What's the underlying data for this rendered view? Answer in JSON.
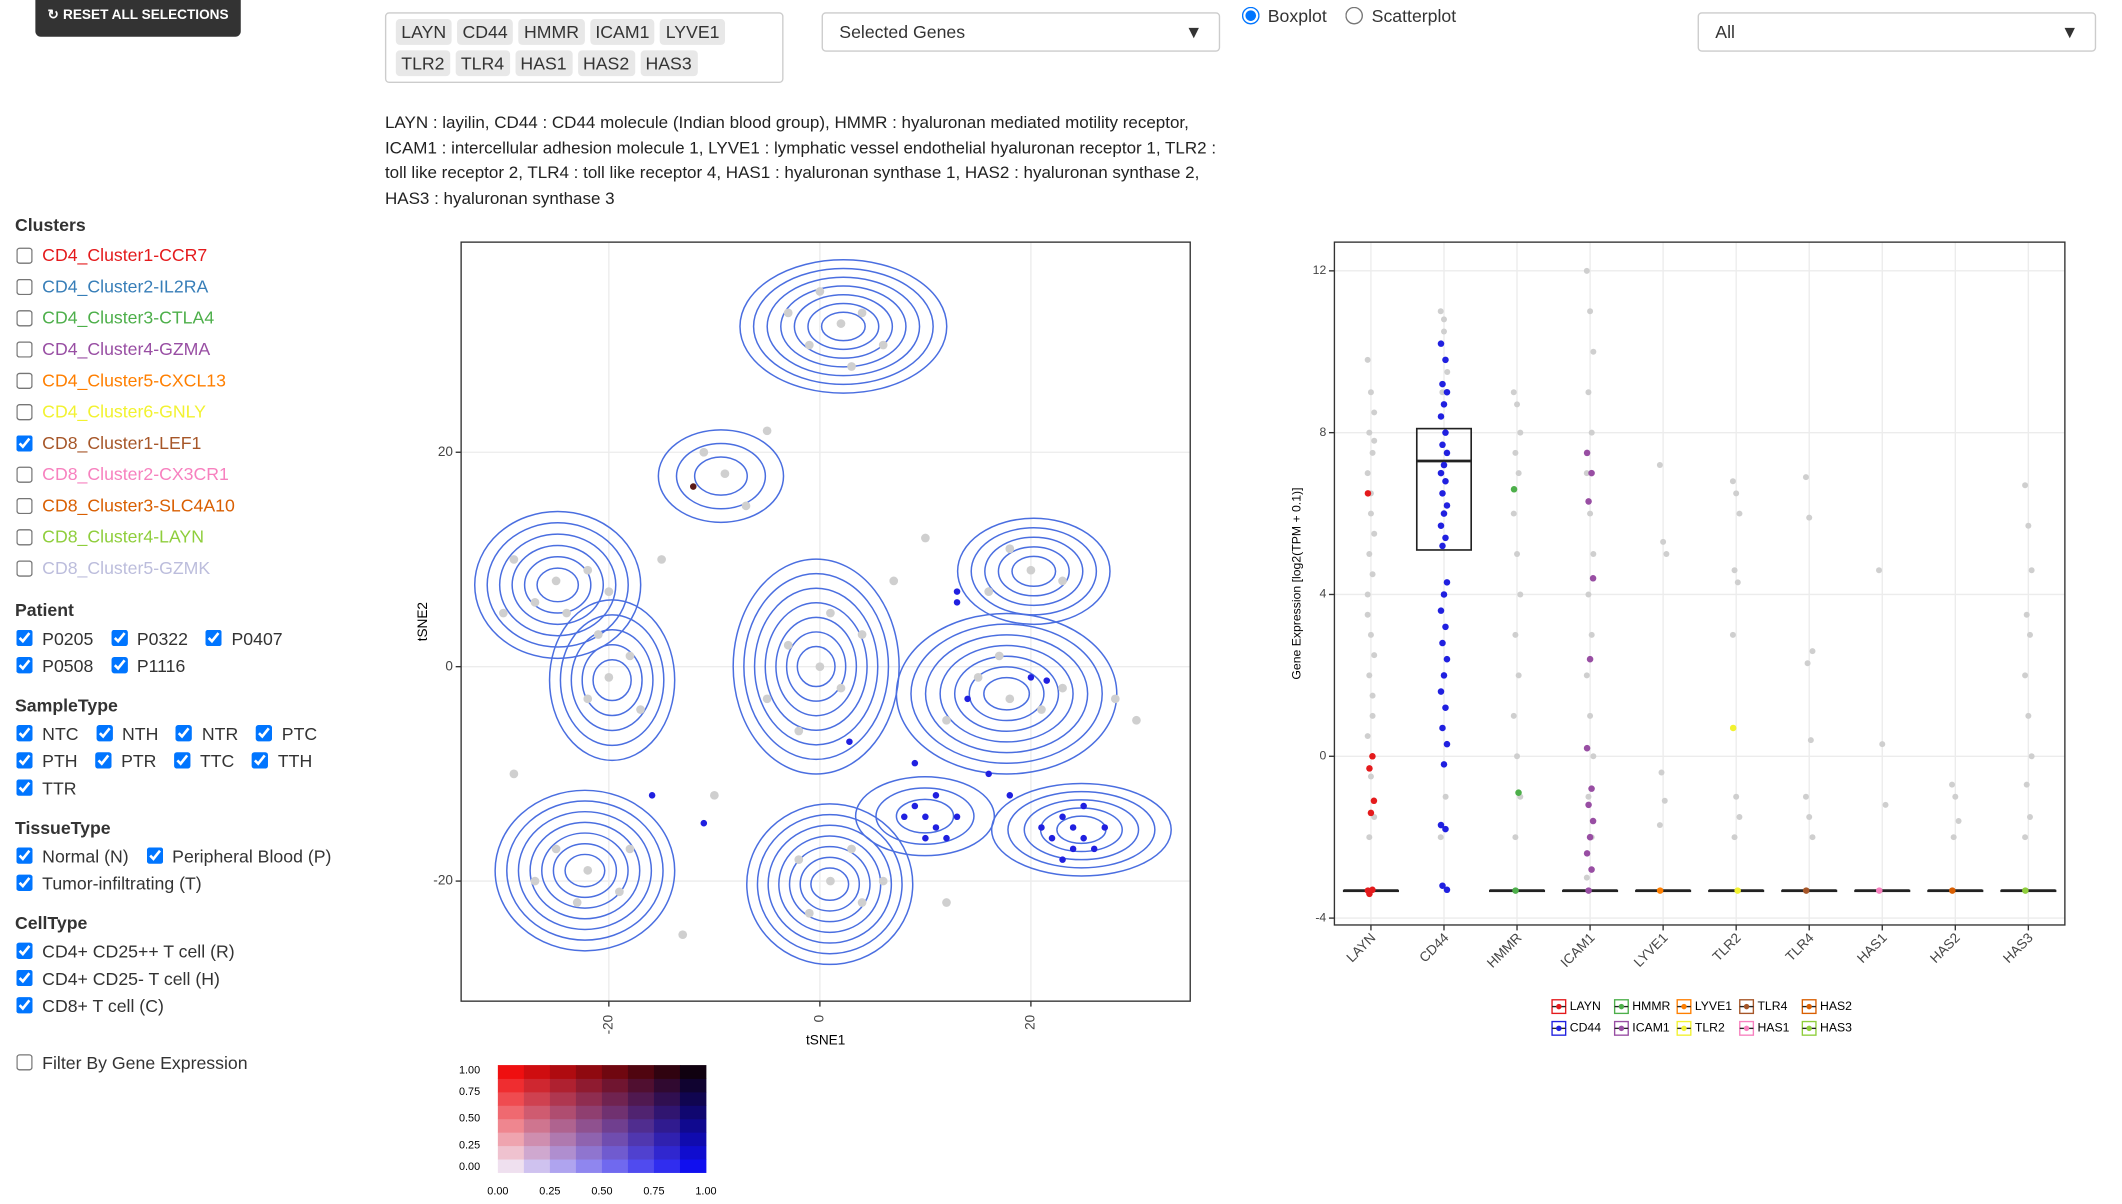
{
  "reset_button": "RESET ALL SELECTIONS",
  "gene_tags": [
    "LAYN",
    "CD44",
    "HMMR",
    "ICAM1",
    "LYVE1",
    "TLR2",
    "TLR4",
    "HAS1",
    "HAS2",
    "HAS3"
  ],
  "gene_select": "Selected Genes",
  "plot_type": [
    {
      "label": "Boxplot",
      "selected": true
    },
    {
      "label": "Scatterplot",
      "selected": false
    }
  ],
  "filter_select": "All",
  "gene_description": "LAYN : layilin, CD44 : CD44 molecule (Indian blood group), HMMR : hyaluronan mediated motility receptor, ICAM1 : intercellular adhesion molecule 1, LYVE1 : lymphatic vessel endothelial hyaluronan receptor 1, TLR2 : toll like receptor 2, TLR4 : toll like receptor 4, HAS1 : hyaluronan synthase 1, HAS2 : hyaluronan synthase 2, HAS3 : hyaluronan synthase 3",
  "sidebar": [
    {
      "title": "Clusters",
      "items": [
        {
          "label": "CD4_Cluster1-CCR7",
          "checked": false,
          "color": "#e41a1c"
        },
        {
          "label": "CD4_Cluster2-IL2RA",
          "checked": false,
          "color": "#377eb8"
        },
        {
          "label": "CD4_Cluster3-CTLA4",
          "checked": false,
          "color": "#4daf4a"
        },
        {
          "label": "CD4_Cluster4-GZMA",
          "checked": false,
          "color": "#984ea3"
        },
        {
          "label": "CD4_Cluster5-CXCL13",
          "checked": false,
          "color": "#ff7f00"
        },
        {
          "label": "CD4_Cluster6-GNLY",
          "checked": false,
          "color": "#f2f230"
        },
        {
          "label": "CD8_Cluster1-LEF1",
          "checked": true,
          "color": "#a65628"
        },
        {
          "label": "CD8_Cluster2-CX3CR1",
          "checked": false,
          "color": "#f781bf"
        },
        {
          "label": "CD8_Cluster3-SLC4A10",
          "checked": false,
          "color": "#d95f02"
        },
        {
          "label": "CD8_Cluster4-LAYN",
          "checked": false,
          "color": "#8fce3c"
        },
        {
          "label": "CD8_Cluster5-GZMK",
          "checked": false,
          "color": "#bcbddc"
        }
      ]
    },
    {
      "title": "Patient",
      "items": [
        {
          "label": "P0205",
          "checked": true
        },
        {
          "label": "P0322",
          "checked": true
        },
        {
          "label": "P0407",
          "checked": true
        },
        {
          "label": "P0508",
          "checked": true
        },
        {
          "label": "P1116",
          "checked": true
        }
      ]
    },
    {
      "title": "SampleType",
      "items": [
        {
          "label": "NTC",
          "checked": true
        },
        {
          "label": "NTH",
          "checked": true
        },
        {
          "label": "NTR",
          "checked": true
        },
        {
          "label": "PTC",
          "checked": true
        },
        {
          "label": "PTH",
          "checked": true
        },
        {
          "label": "PTR",
          "checked": true
        },
        {
          "label": "TTC",
          "checked": true
        },
        {
          "label": "TTH",
          "checked": true
        },
        {
          "label": "TTR",
          "checked": true
        }
      ]
    },
    {
      "title": "TissueType",
      "items": [
        {
          "label": "Normal (N)",
          "checked": true
        },
        {
          "label": "Peripheral Blood (P)",
          "checked": true
        },
        {
          "label": "Tumor-infiltrating (T)",
          "checked": true
        }
      ]
    },
    {
      "title": "CellType",
      "items": [
        {
          "label": "CD4+ CD25++ T cell (R)",
          "checked": true
        },
        {
          "label": "CD4+ CD25- T cell (H)",
          "checked": true
        },
        {
          "label": "CD8+ T cell (C)",
          "checked": true
        }
      ]
    }
  ],
  "gene_filter": {
    "label": "Filter By Gene Expression",
    "checked": false
  },
  "chart_data": [
    {
      "type": "scatter",
      "x_label": "tSNE1",
      "y_label": "tSNE2",
      "xlim": [
        -34,
        35.1
      ],
      "ylim": [
        -31.2,
        39.6
      ],
      "xticks": [
        -20,
        0,
        20
      ],
      "yticks": [
        -20,
        0,
        20
      ],
      "grid": true,
      "series": [
        {
          "color": "#cfcfcf",
          "x": [
            2,
            -1,
            4,
            6,
            0,
            -3,
            3,
            -25,
            -27,
            -22,
            -24,
            -29,
            -20,
            -20,
            -18,
            -22,
            -17,
            -21,
            0,
            -3,
            2,
            4,
            -5,
            1,
            -2,
            -22,
            -25,
            -19,
            -23,
            -27,
            -18,
            1,
            -2,
            4,
            3,
            -1,
            6,
            18,
            15,
            21,
            17,
            23,
            12,
            20,
            18,
            23,
            16,
            -9,
            -7,
            -11,
            -5,
            -30,
            -29,
            -10,
            10,
            28,
            30,
            -15,
            7,
            -13,
            12
          ],
          "y": [
            32,
            30,
            33,
            30,
            35,
            33,
            28,
            8,
            6,
            9,
            5,
            10,
            7,
            -1,
            1,
            -3,
            -4,
            3,
            0,
            2,
            -2,
            3,
            -3,
            5,
            -6,
            -19,
            -17,
            -21,
            -22,
            -20,
            -17,
            -20,
            -18,
            -22,
            -17,
            -23,
            -20,
            -3,
            -1,
            -4,
            1,
            -2,
            -5,
            9,
            11,
            8,
            7,
            18,
            15,
            20,
            22,
            5,
            -10,
            -12,
            12,
            -3,
            -5,
            10,
            8,
            -25,
            -22
          ]
        },
        {
          "color": "#2020e0",
          "x": [
            24,
            25,
            23,
            26,
            22,
            27,
            24,
            25,
            21,
            23,
            10,
            11,
            9,
            12,
            8,
            11,
            13,
            10,
            13,
            13,
            21.5,
            20,
            2.8,
            -15.9,
            -11,
            16,
            18,
            9,
            14
          ],
          "y": [
            -15,
            -16,
            -14,
            -17,
            -16,
            -15,
            -17,
            -13,
            -15,
            -18,
            -14,
            -15,
            -13,
            -16,
            -14,
            -12,
            -14,
            -16,
            6,
            7,
            -1.3,
            -1,
            -7,
            -12,
            -14.6,
            -10,
            -12,
            -9,
            -3
          ]
        },
        {
          "color": "#5a1a1a",
          "x": [
            -12
          ],
          "y": [
            16.8
          ]
        }
      ]
    },
    {
      "type": "boxplot",
      "y_label": "Gene Expression [log2(TPM + 0.1)]",
      "categories": [
        "LAYN",
        "CD44",
        "HMMR",
        "ICAM1",
        "LYVE1",
        "TLR2",
        "TLR4",
        "HAS1",
        "HAS2",
        "HAS3"
      ],
      "colors": [
        "#e41a1c",
        "#2020e0",
        "#4daf4a",
        "#984ea3",
        "#ff7f00",
        "#f2f230",
        "#a65628",
        "#f781bf",
        "#d95f02",
        "#8fce3c"
      ],
      "ylim": [
        -4.17,
        12.71
      ],
      "yticks": [
        -4,
        0,
        4,
        8,
        12
      ],
      "grid": true,
      "boxes": [
        {
          "q1": -3.32,
          "median": -3.32,
          "q3": -3.32
        },
        {
          "q1": 5.1,
          "median": 7.3,
          "q3": 8.1
        },
        {
          "q1": -3.32,
          "median": -3.32,
          "q3": -3.32
        },
        {
          "q1": -3.32,
          "median": -3.32,
          "q3": -3.32
        },
        {
          "q1": -3.32,
          "median": -3.32,
          "q3": -3.32
        },
        {
          "q1": -3.32,
          "median": -3.32,
          "q3": -3.32
        },
        {
          "q1": -3.32,
          "median": -3.32,
          "q3": -3.32
        },
        {
          "q1": -3.32,
          "median": -3.32,
          "q3": -3.32
        },
        {
          "q1": -3.32,
          "median": -3.32,
          "q3": -3.32
        },
        {
          "q1": -3.32,
          "median": -3.32,
          "q3": -3.32
        }
      ],
      "points": [
        [
          9.8,
          9,
          8.5,
          8,
          7.5,
          7,
          6,
          5.5,
          5,
          4.5,
          4,
          3,
          2.5,
          2,
          1,
          0.5,
          -0.5,
          -1.5,
          -2,
          1.5,
          3.5,
          6.5,
          7.8
        ],
        [
          11,
          10.5,
          9.5,
          9,
          -1,
          -2,
          10.8
        ],
        [
          9,
          8.7,
          8,
          7.5,
          7,
          6,
          5,
          4,
          3,
          2,
          1,
          0,
          -1,
          -2
        ],
        [
          12,
          11,
          10,
          9,
          8,
          7,
          6,
          5,
          4,
          3,
          2,
          1,
          0,
          -1,
          -2,
          -3
        ],
        [
          7.2,
          5.3,
          5,
          -0.4,
          -1.1,
          -1.7
        ],
        [
          6.8,
          6.5,
          6,
          4.6,
          4.3,
          3,
          -1,
          -1.5,
          -2
        ],
        [
          6.9,
          5.9,
          2.6,
          2.3,
          0.4,
          -1,
          -1.5,
          -2
        ],
        [
          4.6,
          0.3,
          -1.2
        ],
        [
          -0.7,
          -1,
          -1.6,
          -2
        ],
        [
          6.7,
          5.7,
          4.6,
          3.5,
          3,
          2,
          1,
          0,
          -0.7,
          -1.5,
          -2
        ]
      ],
      "highlight": [
        [
          6.5,
          0,
          -0.3,
          -1.1,
          -1.4,
          -3.32,
          -3.3,
          -3.4
        ],
        [
          10.2,
          9.8,
          9.2,
          9,
          8.7,
          8.4,
          8,
          7.7,
          7.5,
          7.2,
          7,
          6.8,
          6.5,
          6.2,
          6,
          5.7,
          5.4,
          5.2,
          4.3,
          4,
          3.6,
          3.2,
          2.8,
          2.4,
          2,
          1.6,
          1.2,
          0.7,
          0.3,
          -0.2,
          -1.7,
          -1.8,
          -3.2,
          -3.3
        ],
        [
          6.6,
          -0.9,
          -3.32
        ],
        [
          7.5,
          7,
          6.3,
          4.4,
          2.4,
          0.2,
          -0.8,
          -1.2,
          -1.6,
          -2,
          -2.4,
          -2.8,
          -3.32
        ],
        [
          -3.32
        ],
        [
          0.7,
          -3.32
        ],
        [
          -3.32
        ],
        [
          -3.32
        ],
        [
          -3.32
        ],
        [
          -3.32
        ]
      ]
    },
    {
      "type": "color-key",
      "xlim": [
        0,
        1
      ],
      "ylim": [
        0,
        1
      ],
      "xticks": [
        {
          "value": 0,
          "label": "0.00"
        },
        {
          "value": 0.25,
          "label": "0.25"
        },
        {
          "value": 0.5,
          "label": "0.50"
        },
        {
          "value": 0.75,
          "label": "0.75"
        },
        {
          "value": 1,
          "label": "1.00"
        }
      ],
      "yticks": [
        {
          "value": 0,
          "label": "0.00"
        },
        {
          "value": 0.25,
          "label": "0.25"
        },
        {
          "value": 0.5,
          "label": "0.50"
        },
        {
          "value": 0.75,
          "label": "0.75"
        },
        {
          "value": 1,
          "label": "1.00"
        }
      ]
    }
  ]
}
